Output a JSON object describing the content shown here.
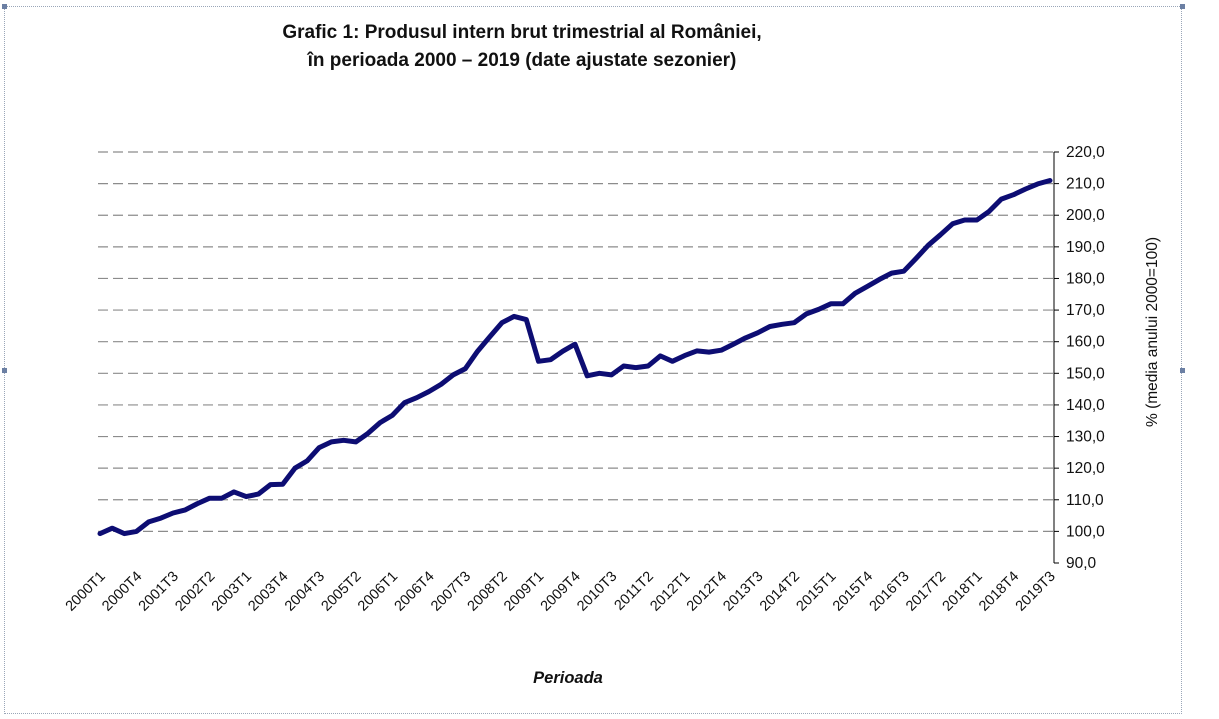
{
  "chart_data": {
    "type": "line",
    "title_lines": [
      "Grafic 1: Produsul intern brut trimestrial al României,",
      "în perioada 2000 – 2019 (date ajustate sezonier)"
    ],
    "xlabel": "Perioada",
    "ylabel": "% (media anului 2000=100)",
    "ylim": [
      90,
      220
    ],
    "yticks": [
      "90,0",
      "100,0",
      "110,0",
      "120,0",
      "130,0",
      "140,0",
      "150,0",
      "160,0",
      "170,0",
      "180,0",
      "190,0",
      "200,0",
      "210,0",
      "220,0"
    ],
    "grid": "horizontal-dashed",
    "line_color": "#0d0d73",
    "x_tick_labels": [
      "2000T1",
      "2000T4",
      "2001T3",
      "2002T2",
      "2003T1",
      "2003T4",
      "2004T3",
      "2005T2",
      "2006T1",
      "2006T4",
      "2007T3",
      "2008T2",
      "2009T1",
      "2009T4",
      "2010T3",
      "2011T2",
      "2012T1",
      "2012T4",
      "2013T3",
      "2014T2",
      "2015T1",
      "2015T4",
      "2016T3",
      "2017T2",
      "2018T1",
      "2018T4",
      "2019T3"
    ],
    "x": [
      "2000T1",
      "2000T2",
      "2000T3",
      "2000T4",
      "2001T1",
      "2001T2",
      "2001T3",
      "2001T4",
      "2002T1",
      "2002T2",
      "2002T3",
      "2002T4",
      "2003T1",
      "2003T2",
      "2003T3",
      "2003T4",
      "2004T1",
      "2004T2",
      "2004T3",
      "2004T4",
      "2005T1",
      "2005T2",
      "2005T3",
      "2005T4",
      "2006T1",
      "2006T2",
      "2006T3",
      "2006T4",
      "2007T1",
      "2007T2",
      "2007T3",
      "2007T4",
      "2008T1",
      "2008T2",
      "2008T3",
      "2008T4",
      "2009T1",
      "2009T2",
      "2009T3",
      "2009T4",
      "2010T1",
      "2010T2",
      "2010T3",
      "2010T4",
      "2011T1",
      "2011T2",
      "2011T3",
      "2011T4",
      "2012T1",
      "2012T2",
      "2012T3",
      "2012T4",
      "2013T1",
      "2013T2",
      "2013T3",
      "2013T4",
      "2014T1",
      "2014T2",
      "2014T3",
      "2014T4",
      "2015T1",
      "2015T2",
      "2015T3",
      "2015T4",
      "2016T1",
      "2016T2",
      "2016T3",
      "2016T4",
      "2017T1",
      "2017T2",
      "2017T3",
      "2017T4",
      "2018T1",
      "2018T2",
      "2018T3",
      "2018T4",
      "2019T1",
      "2019T2",
      "2019T3"
    ],
    "series": [
      {
        "values": [
          99.3,
          101.0,
          99.3,
          100.0,
          103.0,
          104.2,
          105.8,
          106.8,
          108.8,
          110.5,
          110.5,
          112.5,
          111.0,
          111.8,
          114.8,
          114.9,
          120.0,
          122.3,
          126.5,
          128.3,
          128.8,
          128.3,
          131.0,
          134.4,
          136.7,
          140.7,
          142.3,
          144.2,
          146.5,
          149.5,
          151.5,
          157.0,
          161.5,
          166.0,
          168.0,
          167.0,
          153.8,
          154.3,
          157.0,
          159.2,
          149.2,
          150.0,
          149.5,
          152.3,
          151.8,
          152.3,
          155.5,
          153.8,
          155.6,
          157.1,
          156.7,
          157.3,
          159.2,
          161.2,
          162.8,
          164.8,
          165.5,
          166.0,
          168.8,
          170.2,
          172.0,
          172.0,
          175.3,
          177.5,
          179.7,
          181.7,
          182.3,
          186.3,
          190.5,
          193.8,
          197.3,
          198.5,
          198.5,
          201.2,
          205.1,
          206.5,
          208.3,
          209.9,
          211.0
        ]
      }
    ]
  }
}
